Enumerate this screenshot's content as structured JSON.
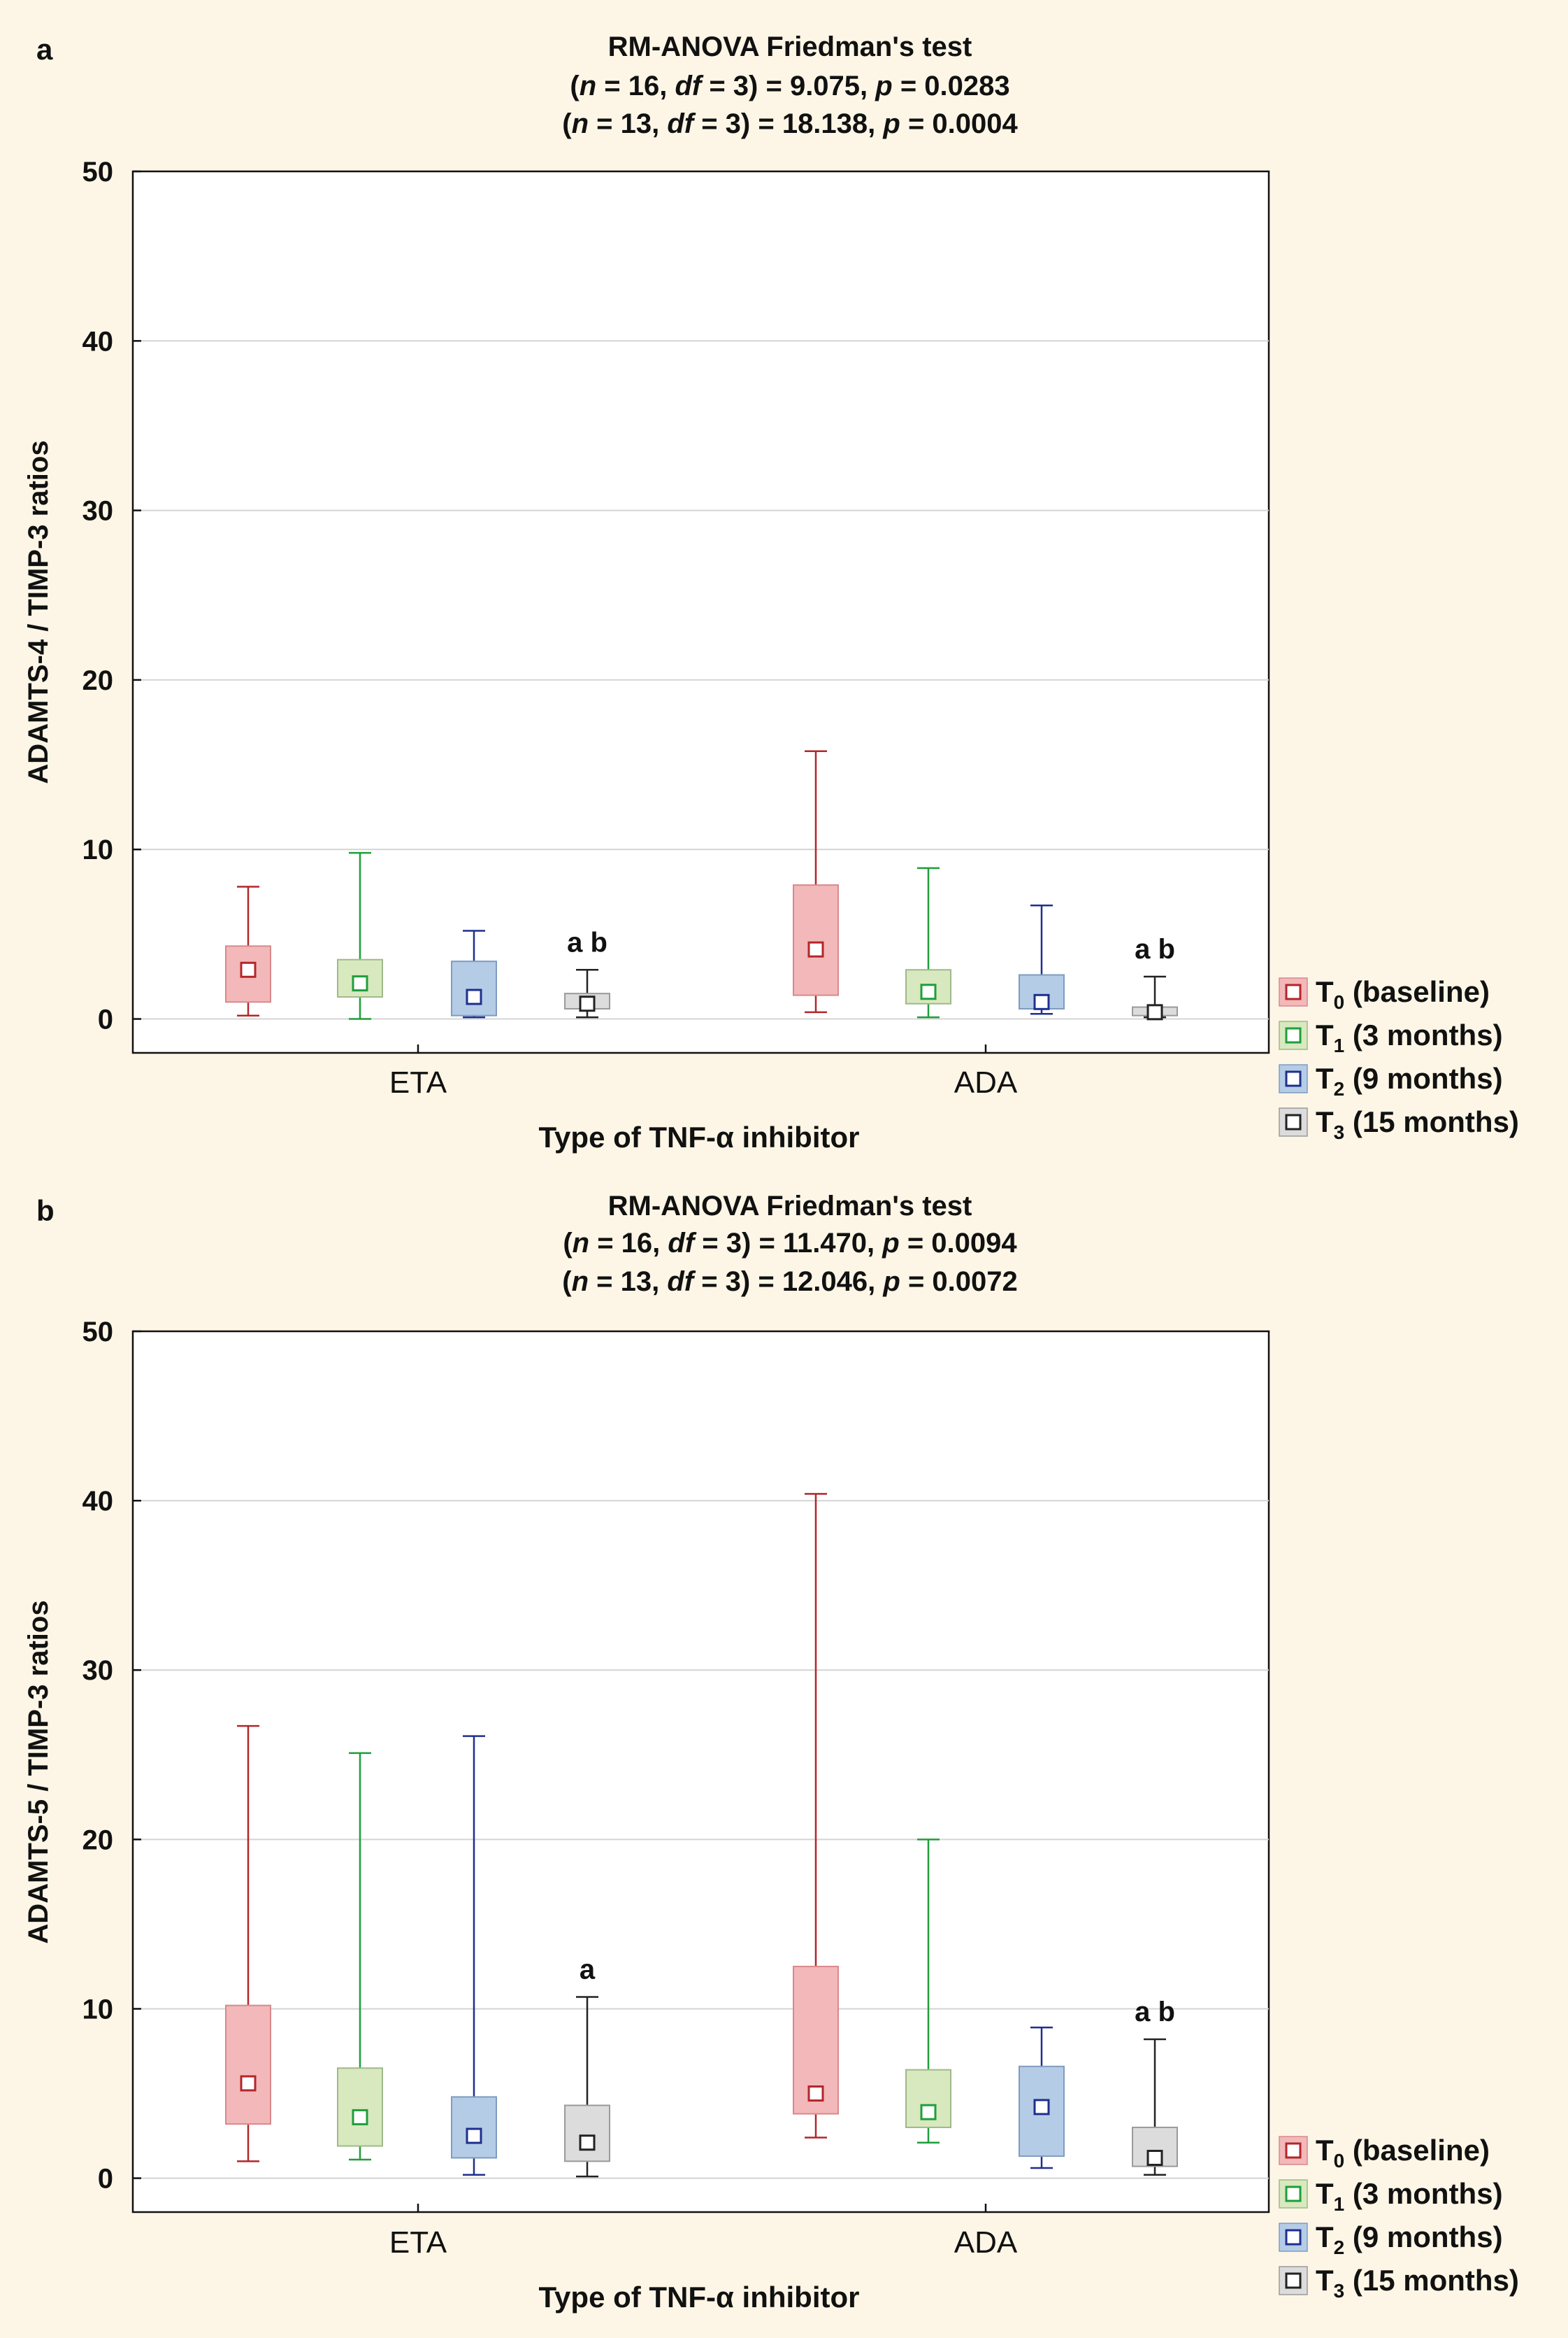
{
  "chart_data": [
    {
      "type": "boxplot",
      "panel_label": "a",
      "title_lines": [
        [
          {
            "t": "RM-ANOVA Friedman's test",
            "s": "n"
          }
        ],
        [
          {
            "t": "(",
            "s": "n"
          },
          {
            "t": "n",
            "s": "i"
          },
          {
            "t": " = 16, ",
            "s": "n"
          },
          {
            "t": "df",
            "s": "i"
          },
          {
            "t": " = 3) =  9.075,  ",
            "s": "n"
          },
          {
            "t": "p",
            "s": "i"
          },
          {
            "t": " = 0.0283",
            "s": "n"
          }
        ],
        [
          {
            "t": "(",
            "s": "n"
          },
          {
            "t": "n",
            "s": "i"
          },
          {
            "t": " = 13, ",
            "s": "n"
          },
          {
            "t": "df",
            "s": "i"
          },
          {
            "t": " = 3) = 18.138, ",
            "s": "n"
          },
          {
            "t": "p",
            "s": "i"
          },
          {
            "t": " = 0.0004",
            "s": "n"
          }
        ]
      ],
      "ylabel": "ADAMTS-4 / TIMP-3 ratios",
      "xlabel": "Type of TNF-α inhibitor",
      "ylim": [
        -2,
        50
      ],
      "yticks": [
        0,
        10,
        20,
        30,
        40,
        50
      ],
      "categories": [
        "ETA",
        "ADA"
      ],
      "groups": [
        {
          "category": "ETA",
          "boxes": [
            {
              "series": 0,
              "whisker_low": 0.2,
              "q1": 1.0,
              "median": 2.9,
              "q3": 4.3,
              "whisker_high": 7.8,
              "annotation": ""
            },
            {
              "series": 1,
              "whisker_low": 0.0,
              "q1": 1.3,
              "median": 2.1,
              "q3": 3.5,
              "whisker_high": 9.8,
              "annotation": ""
            },
            {
              "series": 2,
              "whisker_low": 0.1,
              "q1": 0.2,
              "median": 1.3,
              "q3": 3.4,
              "whisker_high": 5.2,
              "annotation": ""
            },
            {
              "series": 3,
              "whisker_low": 0.1,
              "q1": 0.6,
              "median": 0.9,
              "q3": 1.5,
              "whisker_high": 2.9,
              "annotation": "a b"
            }
          ]
        },
        {
          "category": "ADA",
          "boxes": [
            {
              "series": 0,
              "whisker_low": 0.4,
              "q1": 1.4,
              "median": 4.1,
              "q3": 7.9,
              "whisker_high": 15.8,
              "annotation": ""
            },
            {
              "series": 1,
              "whisker_low": 0.1,
              "q1": 0.9,
              "median": 1.6,
              "q3": 2.9,
              "whisker_high": 8.9,
              "annotation": ""
            },
            {
              "series": 2,
              "whisker_low": 0.3,
              "q1": 0.6,
              "median": 1.0,
              "q3": 2.6,
              "whisker_high": 6.7,
              "annotation": ""
            },
            {
              "series": 3,
              "whisker_low": 0.1,
              "q1": 0.2,
              "median": 0.4,
              "q3": 0.7,
              "whisker_high": 2.5,
              "annotation": "a b"
            }
          ]
        }
      ]
    },
    {
      "type": "boxplot",
      "panel_label": "b",
      "title_lines": [
        [
          {
            "t": "RM-ANOVA Friedman's test",
            "s": "n"
          }
        ],
        [
          {
            "t": "(",
            "s": "n"
          },
          {
            "t": "n",
            "s": "i"
          },
          {
            "t": " = 16, ",
            "s": "n"
          },
          {
            "t": "df",
            "s": "i"
          },
          {
            "t": " = 3) = 11.470, ",
            "s": "n"
          },
          {
            "t": "p",
            "s": "i"
          },
          {
            "t": " = 0.0094",
            "s": "n"
          }
        ],
        [
          {
            "t": "(",
            "s": "n"
          },
          {
            "t": "n",
            "s": "i"
          },
          {
            "t": " = 13, ",
            "s": "n"
          },
          {
            "t": "df",
            "s": "i"
          },
          {
            "t": " = 3) = 12.046, ",
            "s": "n"
          },
          {
            "t": "p",
            "s": "i"
          },
          {
            "t": " = 0.0072",
            "s": "n"
          }
        ]
      ],
      "ylabel": "ADAMTS-5 / TIMP-3 ratios",
      "xlabel": "Type of TNF-α inhibitor",
      "ylim": [
        -2,
        50
      ],
      "yticks": [
        0,
        10,
        20,
        30,
        40,
        50
      ],
      "categories": [
        "ETA",
        "ADA"
      ],
      "groups": [
        {
          "category": "ETA",
          "boxes": [
            {
              "series": 0,
              "whisker_low": 1.0,
              "q1": 3.2,
              "median": 5.6,
              "q3": 10.2,
              "whisker_high": 26.7,
              "annotation": ""
            },
            {
              "series": 1,
              "whisker_low": 1.1,
              "q1": 1.9,
              "median": 3.6,
              "q3": 6.5,
              "whisker_high": 25.1,
              "annotation": ""
            },
            {
              "series": 2,
              "whisker_low": 0.2,
              "q1": 1.2,
              "median": 2.5,
              "q3": 4.8,
              "whisker_high": 26.1,
              "annotation": ""
            },
            {
              "series": 3,
              "whisker_low": 0.1,
              "q1": 1.0,
              "median": 2.1,
              "q3": 4.3,
              "whisker_high": 10.7,
              "annotation": "a"
            }
          ]
        },
        {
          "category": "ADA",
          "boxes": [
            {
              "series": 0,
              "whisker_low": 2.4,
              "q1": 3.8,
              "median": 5.0,
              "q3": 12.5,
              "whisker_high": 40.4,
              "annotation": ""
            },
            {
              "series": 1,
              "whisker_low": 2.1,
              "q1": 3.0,
              "median": 3.9,
              "q3": 6.4,
              "whisker_high": 20.0,
              "annotation": ""
            },
            {
              "series": 2,
              "whisker_low": 0.6,
              "q1": 1.3,
              "median": 4.2,
              "q3": 6.6,
              "whisker_high": 8.9,
              "annotation": ""
            },
            {
              "series": 3,
              "whisker_low": 0.2,
              "q1": 0.7,
              "median": 1.2,
              "q3": 3.0,
              "whisker_high": 8.2,
              "annotation": "a b"
            }
          ]
        }
      ]
    }
  ],
  "series": [
    {
      "name": "T0 (baseline)",
      "base": "T",
      "sub": "0",
      "rest": " (baseline)",
      "fill": "#f2b8ba",
      "stroke": "#b3262a",
      "box_stroke": "#d9898c"
    },
    {
      "name": "T1 (3 months)",
      "base": "T",
      "sub": "1",
      "rest": " (3 months)",
      "fill": "#d8e8bf",
      "stroke": "#1f9e3a",
      "box_stroke": "#9fb98a"
    },
    {
      "name": "T2 (9 months)",
      "base": "T",
      "sub": "2",
      "rest": " (9 months)",
      "fill": "#b4cce6",
      "stroke": "#1f2f8f",
      "box_stroke": "#7f9cc0"
    },
    {
      "name": "T3 (15 months)",
      "base": "T",
      "sub": "3",
      "rest": " (15 months)",
      "fill": "#dcdcdc",
      "stroke": "#222222",
      "box_stroke": "#9a9a9a"
    }
  ]
}
